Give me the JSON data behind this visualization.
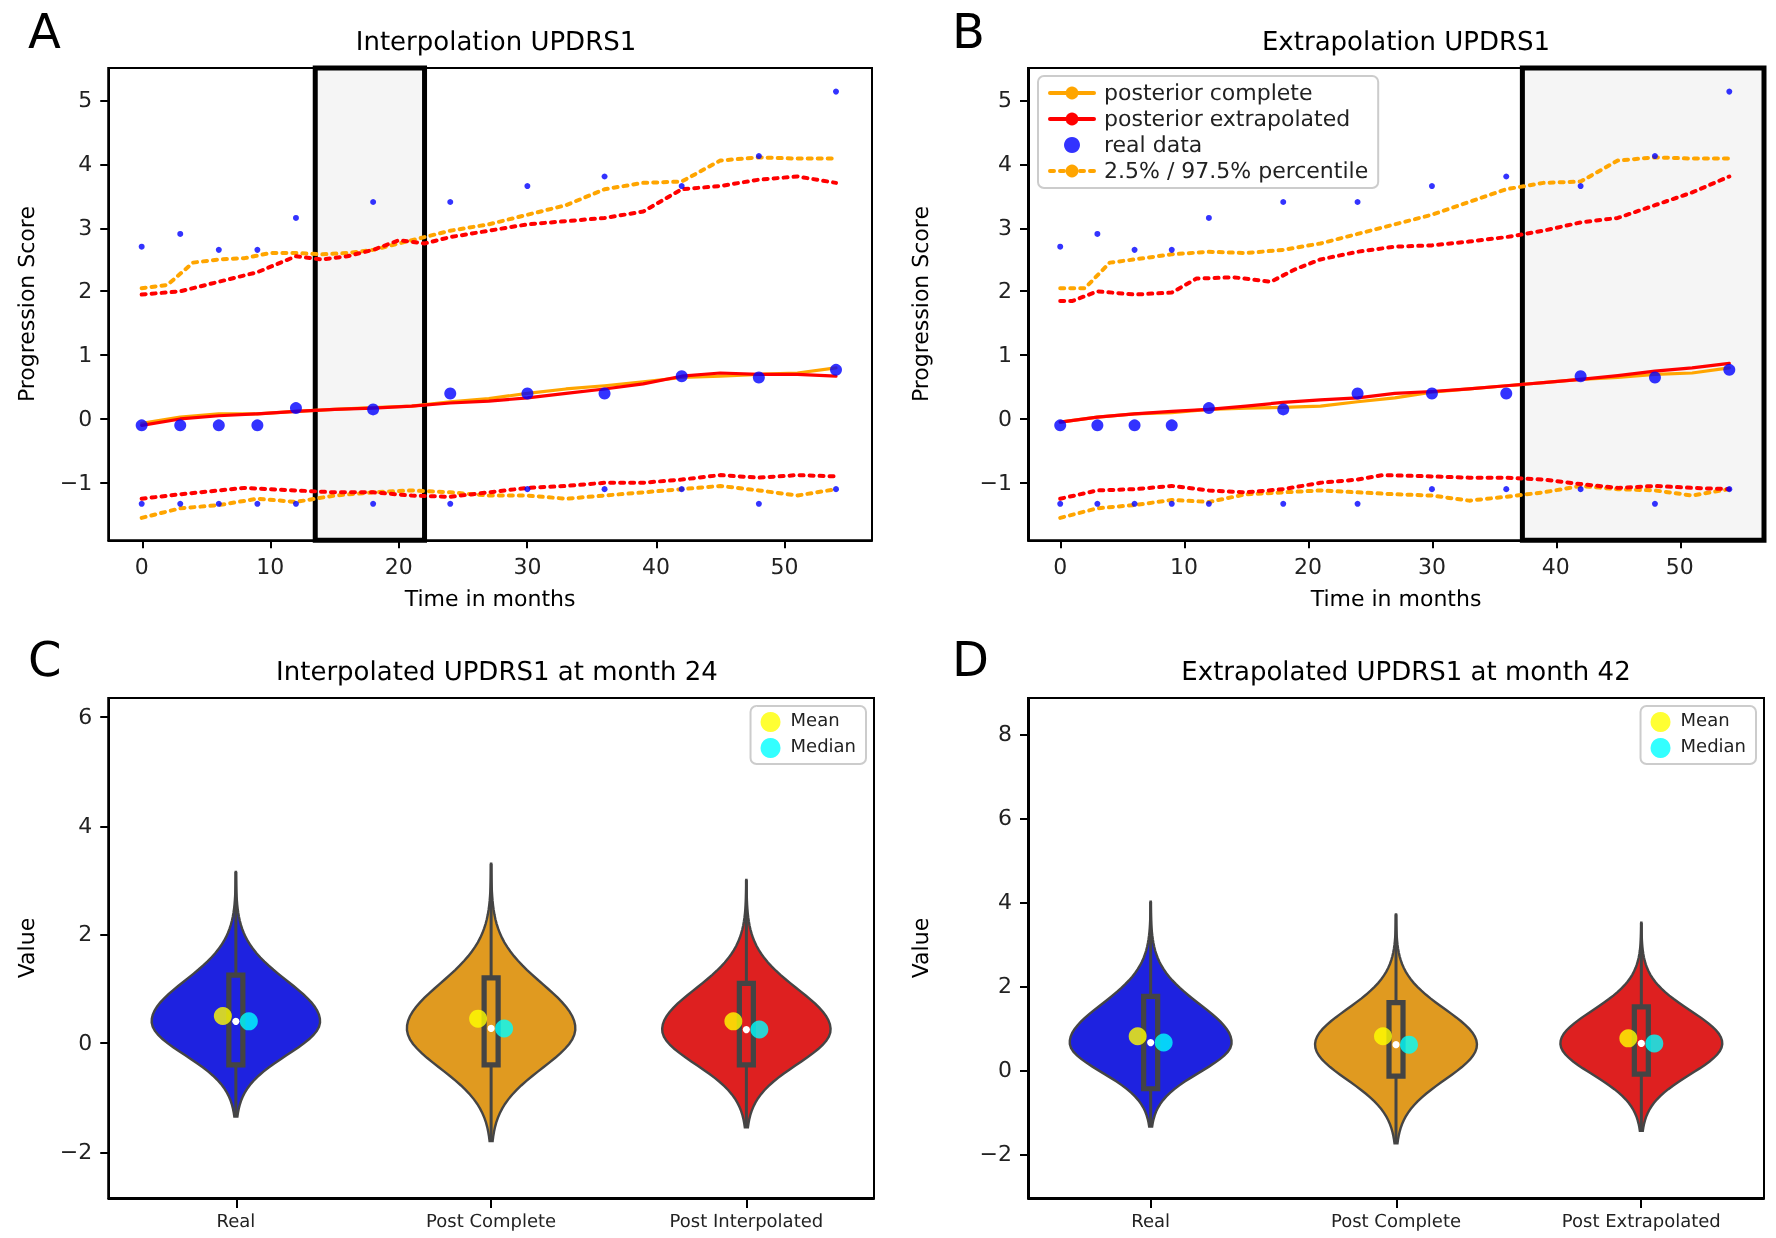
{
  "chart_data": [
    {
      "type": "line",
      "title": "Interpolation UPDRS1",
      "xlabel": "Time in months",
      "ylabel": "Progression Score",
      "annotations": [
        "A"
      ],
      "xlim": [
        -2.6,
        56.8
      ],
      "xticks": [
        0,
        10,
        20,
        30,
        40,
        50
      ],
      "ylim": [
        -1.9,
        5.5
      ],
      "yticks": [
        -1,
        0,
        1,
        2,
        3,
        4,
        5
      ],
      "grid": false,
      "legend": false,
      "bands": [
        {
          "axis": "x",
          "from": 13.5,
          "to": 22,
          "color": "#000000"
        }
      ],
      "series": [
        {
          "type": "line",
          "color": "#ffa500",
          "line_style": "solid",
          "x": [
            0,
            3,
            6,
            9,
            12,
            15,
            18,
            21,
            24,
            27,
            30,
            33,
            36,
            39,
            42,
            45,
            48,
            51,
            54
          ],
          "values": [
            -0.07,
            0.03,
            0.08,
            0.08,
            0.12,
            0.15,
            0.18,
            0.2,
            0.27,
            0.32,
            0.4,
            0.47,
            0.52,
            0.58,
            0.65,
            0.67,
            0.7,
            0.72,
            0.8
          ]
        },
        {
          "type": "line",
          "color": "#ff0000",
          "line_style": "solid",
          "x": [
            0,
            3,
            6,
            9,
            12,
            15,
            18,
            21,
            24,
            27,
            30,
            33,
            36,
            39,
            42,
            45,
            48,
            51,
            54
          ],
          "values": [
            -0.1,
            0,
            0.05,
            0.08,
            0.12,
            0.15,
            0.17,
            0.2,
            0.25,
            0.28,
            0.33,
            0.4,
            0.47,
            0.55,
            0.67,
            0.72,
            0.7,
            0.7,
            0.67
          ]
        },
        {
          "type": "scatter",
          "color": "#0000ff",
          "marker": "circle",
          "x": [
            0,
            3,
            6,
            9,
            12,
            18,
            24,
            30,
            36,
            42,
            48,
            54
          ],
          "values": [
            -0.1,
            -0.1,
            -0.1,
            -0.1,
            0.17,
            0.15,
            0.4,
            0.4,
            0.4,
            0.67,
            0.65,
            0.77
          ]
        },
        {
          "type": "line",
          "color": "#ffa500",
          "line_style": "dotted",
          "x": [
            0,
            2,
            4,
            6,
            8,
            10,
            12,
            14,
            16,
            18,
            20,
            22,
            24,
            27,
            30,
            33,
            36,
            39,
            42,
            45,
            48,
            51,
            54
          ],
          "values": [
            2.05,
            2.1,
            2.45,
            2.5,
            2.52,
            2.6,
            2.6,
            2.58,
            2.6,
            2.65,
            2.75,
            2.85,
            2.95,
            3.05,
            3.2,
            3.35,
            3.6,
            3.7,
            3.72,
            4.05,
            4.1,
            4.08,
            4.08
          ]
        },
        {
          "type": "line",
          "color": "#ff0000",
          "line_style": "dotted",
          "x": [
            0,
            3,
            6,
            9,
            12,
            14,
            16,
            18,
            20,
            22,
            24,
            27,
            30,
            33,
            36,
            39,
            42,
            45,
            48,
            51,
            54
          ],
          "values": [
            1.95,
            2.0,
            2.15,
            2.3,
            2.55,
            2.5,
            2.55,
            2.65,
            2.8,
            2.75,
            2.85,
            2.95,
            3.05,
            3.1,
            3.15,
            3.25,
            3.6,
            3.65,
            3.75,
            3.8,
            3.7
          ]
        },
        {
          "type": "line",
          "color": "#ffa500",
          "line_style": "dotted",
          "x": [
            0,
            3,
            6,
            9,
            12,
            15,
            18,
            21,
            24,
            27,
            30,
            33,
            36,
            39,
            42,
            45,
            48,
            51,
            54
          ],
          "values": [
            -1.55,
            -1.4,
            -1.35,
            -1.25,
            -1.3,
            -1.2,
            -1.15,
            -1.12,
            -1.15,
            -1.2,
            -1.2,
            -1.25,
            -1.2,
            -1.15,
            -1.1,
            -1.05,
            -1.12,
            -1.2,
            -1.1
          ]
        },
        {
          "type": "line",
          "color": "#ff0000",
          "line_style": "dotted",
          "x": [
            0,
            3,
            6,
            8,
            12,
            15,
            18,
            21,
            24,
            27,
            30,
            33,
            36,
            39,
            42,
            45,
            48,
            51,
            54
          ],
          "values": [
            -1.25,
            -1.18,
            -1.12,
            -1.08,
            -1.12,
            -1.15,
            -1.15,
            -1.2,
            -1.22,
            -1.15,
            -1.08,
            -1.05,
            -1.0,
            -1.0,
            -0.95,
            -0.88,
            -0.92,
            -0.88,
            -0.9
          ]
        },
        {
          "type": "scatter",
          "color": "#0000ff",
          "marker": "circle",
          "x": [
            0,
            3,
            6,
            9,
            12,
            18,
            24,
            30,
            36,
            42,
            48,
            54
          ],
          "values": [
            2.7,
            2.9,
            2.65,
            2.65,
            3.15,
            3.4,
            3.4,
            3.65,
            3.8,
            3.65,
            4.12,
            5.13
          ]
        },
        {
          "type": "scatter",
          "color": "#0000ff",
          "marker": "circle",
          "x": [
            0,
            3,
            6,
            9,
            12,
            18,
            24,
            30,
            36,
            42,
            48,
            54
          ],
          "values": [
            -1.33,
            -1.33,
            -1.33,
            -1.33,
            -1.33,
            -1.33,
            -1.33,
            -1.1,
            -1.1,
            -1.1,
            -1.33,
            -1.1
          ]
        }
      ]
    },
    {
      "type": "line",
      "title": "Extrapolation UPDRS1",
      "xlabel": "Time in months",
      "ylabel": "Progression Score",
      "annotations": [
        "B"
      ],
      "xlim": [
        -2.6,
        56.8
      ],
      "xticks": [
        0,
        10,
        20,
        30,
        40,
        50
      ],
      "ylim": [
        -1.9,
        5.5
      ],
      "yticks": [
        -1,
        0,
        1,
        2,
        3,
        4,
        5
      ],
      "grid": false,
      "legend": "top left",
      "bands": [
        {
          "axis": "x",
          "from": 37.3,
          "to": 56.8,
          "color": "#000000"
        }
      ],
      "series": [
        {
          "type": "line",
          "name": "posterior complete",
          "color": "#ffa500",
          "line_style": "solid",
          "x": [
            0,
            3,
            6,
            9,
            12,
            15,
            18,
            21,
            24,
            27,
            30,
            33,
            36,
            39,
            42,
            45,
            48,
            51,
            54
          ],
          "values": [
            -0.05,
            0.03,
            0.08,
            0.1,
            0.15,
            0.17,
            0.18,
            0.2,
            0.27,
            0.33,
            0.42,
            0.47,
            0.52,
            0.57,
            0.62,
            0.65,
            0.7,
            0.72,
            0.8
          ]
        },
        {
          "type": "line",
          "name": "posterior extrapolated",
          "color": "#ff0000",
          "line_style": "solid",
          "x": [
            0,
            3,
            6,
            9,
            12,
            15,
            18,
            21,
            24,
            27,
            30,
            33,
            36,
            39,
            42,
            45,
            48,
            51,
            54
          ],
          "values": [
            -0.05,
            0.03,
            0.08,
            0.12,
            0.15,
            0.2,
            0.26,
            0.3,
            0.33,
            0.4,
            0.43,
            0.47,
            0.52,
            0.57,
            0.62,
            0.68,
            0.75,
            0.8,
            0.87
          ]
        },
        {
          "type": "scatter",
          "name": "real data",
          "color": "#0000ff",
          "marker": "circle",
          "x": [
            0,
            3,
            6,
            9,
            12,
            18,
            24,
            30,
            36,
            42,
            48,
            54
          ],
          "values": [
            -0.1,
            -0.1,
            -0.1,
            -0.1,
            0.17,
            0.15,
            0.4,
            0.4,
            0.4,
            0.67,
            0.65,
            0.77
          ]
        },
        {
          "type": "line",
          "name": "2.5% / 97.5% percentile",
          "color": "#ffa500",
          "line_style": "dotted",
          "x": [
            0,
            2,
            4,
            6,
            9,
            12,
            15,
            18,
            21,
            24,
            27,
            30,
            33,
            36,
            39,
            42,
            45,
            48,
            51,
            54
          ],
          "values": [
            2.05,
            2.05,
            2.45,
            2.5,
            2.58,
            2.62,
            2.6,
            2.65,
            2.75,
            2.9,
            3.05,
            3.2,
            3.4,
            3.6,
            3.7,
            3.72,
            4.05,
            4.1,
            4.08,
            4.08
          ]
        },
        {
          "type": "line",
          "color": "#ff0000",
          "line_style": "dotted",
          "x": [
            0,
            1,
            3,
            6,
            9,
            11,
            14,
            17,
            19,
            21,
            24,
            27,
            30,
            33,
            36,
            39,
            42,
            45,
            48,
            51,
            54
          ],
          "values": [
            1.85,
            1.85,
            2.0,
            1.95,
            1.98,
            2.2,
            2.22,
            2.15,
            2.35,
            2.5,
            2.62,
            2.7,
            2.72,
            2.78,
            2.85,
            2.95,
            3.08,
            3.15,
            3.35,
            3.55,
            3.8
          ]
        },
        {
          "type": "line",
          "color": "#ffa500",
          "line_style": "dotted",
          "x": [
            0,
            3,
            6,
            9,
            12,
            15,
            18,
            21,
            24,
            27,
            30,
            33,
            36,
            39,
            42,
            45,
            48,
            51,
            54
          ],
          "values": [
            -1.55,
            -1.4,
            -1.35,
            -1.27,
            -1.3,
            -1.18,
            -1.15,
            -1.12,
            -1.15,
            -1.18,
            -1.2,
            -1.28,
            -1.22,
            -1.15,
            -1.05,
            -1.1,
            -1.12,
            -1.2,
            -1.1
          ]
        },
        {
          "type": "line",
          "color": "#ff0000",
          "line_style": "dotted",
          "x": [
            0,
            3,
            6,
            9,
            12,
            15,
            18,
            21,
            24,
            26,
            30,
            33,
            36,
            39,
            42,
            45,
            48,
            51,
            54
          ],
          "values": [
            -1.25,
            -1.12,
            -1.1,
            -1.05,
            -1.12,
            -1.15,
            -1.1,
            -1.0,
            -0.95,
            -0.88,
            -0.9,
            -0.92,
            -0.92,
            -0.95,
            -1.02,
            -1.08,
            -1.05,
            -1.08,
            -1.1
          ]
        },
        {
          "type": "scatter",
          "color": "#0000ff",
          "marker": "circle",
          "x": [
            0,
            3,
            6,
            9,
            12,
            18,
            24,
            30,
            36,
            42,
            48,
            54
          ],
          "values": [
            2.7,
            2.9,
            2.65,
            2.65,
            3.15,
            3.4,
            3.4,
            3.65,
            3.8,
            3.65,
            4.12,
            5.13
          ]
        },
        {
          "type": "scatter",
          "color": "#0000ff",
          "marker": "circle",
          "x": [
            0,
            3,
            6,
            9,
            12,
            18,
            24,
            30,
            36,
            42,
            48,
            54
          ],
          "values": [
            -1.33,
            -1.33,
            -1.33,
            -1.33,
            -1.33,
            -1.33,
            -1.33,
            -1.1,
            -1.1,
            -1.1,
            -1.33,
            -1.1
          ]
        }
      ]
    },
    {
      "type": "box",
      "title": "Interpolated UPDRS1 at month 24",
      "ylabel": "Value",
      "annotations": [
        "C"
      ],
      "categories": [
        "Real",
        "Post Complete",
        "Post Interpolated"
      ],
      "ylim": [
        -2.85,
        6.35
      ],
      "yticks": [
        -2,
        0,
        2,
        4,
        6
      ],
      "grid": false,
      "legend": "top right",
      "series": [
        {
          "type": "box",
          "colors": [
            "#1e22e0",
            "#e09a20",
            "#de2020"
          ],
          "boxes": [
            {
              "low": -1.35,
              "q1": -0.4,
              "median": 0.4,
              "q3": 1.25,
              "high": 3.15
            },
            {
              "low": -1.8,
              "q1": -0.4,
              "median": 0.27,
              "q3": 1.2,
              "high": 3.3
            },
            {
              "low": -1.55,
              "q1": -0.4,
              "median": 0.25,
              "q3": 1.1,
              "high": 3.0
            }
          ]
        },
        {
          "type": "scatter",
          "name": "Mean",
          "color": "#ffff00",
          "marker": "circle",
          "x": [
            "Real",
            "Post Complete",
            "Post Interpolated"
          ],
          "values": [
            0.5,
            0.45,
            0.4
          ]
        },
        {
          "type": "scatter",
          "name": "Median",
          "color": "#00ffff",
          "marker": "circle",
          "x": [
            "Real",
            "Post Complete",
            "Post Interpolated"
          ],
          "values": [
            0.4,
            0.27,
            0.25
          ]
        }
      ]
    },
    {
      "type": "box",
      "title": "Extrapolated UPDRS1 at month 42",
      "ylabel": "Value",
      "annotations": [
        "D"
      ],
      "categories": [
        "Real",
        "Post Complete",
        "Post Extrapolated"
      ],
      "ylim": [
        -3.05,
        8.85
      ],
      "yticks": [
        -2,
        0,
        2,
        4,
        6,
        8
      ],
      "grid": false,
      "legend": "top right",
      "series": [
        {
          "type": "box",
          "colors": [
            "#1e22e0",
            "#e09a20",
            "#de2020"
          ],
          "boxes": [
            {
              "low": -1.35,
              "q1": -0.45,
              "median": 0.65,
              "q3": 1.75,
              "high": 4.0
            },
            {
              "low": -1.75,
              "q1": -0.15,
              "median": 0.6,
              "q3": 1.6,
              "high": 3.7
            },
            {
              "low": -1.45,
              "q1": -0.1,
              "median": 0.63,
              "q3": 1.5,
              "high": 3.5
            }
          ]
        },
        {
          "type": "scatter",
          "name": "Mean",
          "color": "#ffff00",
          "marker": "circle",
          "x": [
            "Real",
            "Post Complete",
            "Post Extrapolated"
          ],
          "values": [
            0.8,
            0.8,
            0.75
          ]
        },
        {
          "type": "scatter",
          "name": "Median",
          "color": "#00ffff",
          "marker": "circle",
          "x": [
            "Real",
            "Post Complete",
            "Post Extrapolated"
          ],
          "values": [
            0.65,
            0.6,
            0.63
          ]
        }
      ]
    }
  ]
}
